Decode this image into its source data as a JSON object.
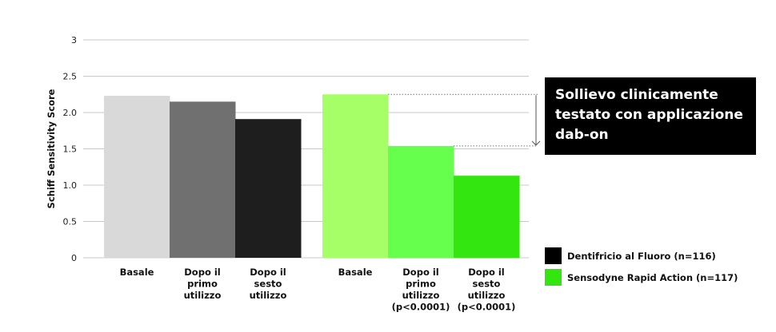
{
  "chart_data": {
    "type": "bar",
    "ylabel": "Schiff Sensitivity Score",
    "ylim": [
      0,
      3
    ],
    "yticks": [
      "0",
      "0.5",
      "1.0",
      "1.5",
      "2.0",
      "2.5",
      "3"
    ],
    "grid": true,
    "groups": [
      {
        "series": "Dentifricio al Fluoro (n=116)",
        "bars": [
          {
            "label": [
              "Basale"
            ],
            "value": 2.23,
            "color": "#d9d9d9"
          },
          {
            "label": [
              "Dopo il",
              "primo",
              "utilizzo"
            ],
            "value": 2.15,
            "color": "#707070"
          },
          {
            "label": [
              "Dopo il",
              "sesto",
              "utilizzo"
            ],
            "value": 1.91,
            "color": "#1e1e1e"
          }
        ]
      },
      {
        "series": "Sensodyne Rapid Action (n=117)",
        "bars": [
          {
            "label": [
              "Basale"
            ],
            "value": 2.25,
            "color": "#a6ff66"
          },
          {
            "label": [
              "Dopo il",
              "primo",
              "utilizzo",
              "(p<0.0001)"
            ],
            "value": 1.54,
            "color": "#66ff4d"
          },
          {
            "label": [
              "Dopo il",
              "sesto",
              "utilizzo",
              "(p<0.0001)"
            ],
            "value": 1.13,
            "color": "#33e60f"
          }
        ]
      }
    ],
    "legend": [
      {
        "label": "Dentifricio al Fluoro (n=116)",
        "color": "#000000"
      },
      {
        "label": "Sensodyne Rapid Action (n=117)",
        "color": "#33e60f"
      }
    ],
    "legend_position": "bottom-right",
    "annotation": {
      "text": "Sollievo clinicamente testato con applicazione dab-on",
      "from_value": 2.25,
      "to_value": 1.54
    }
  }
}
